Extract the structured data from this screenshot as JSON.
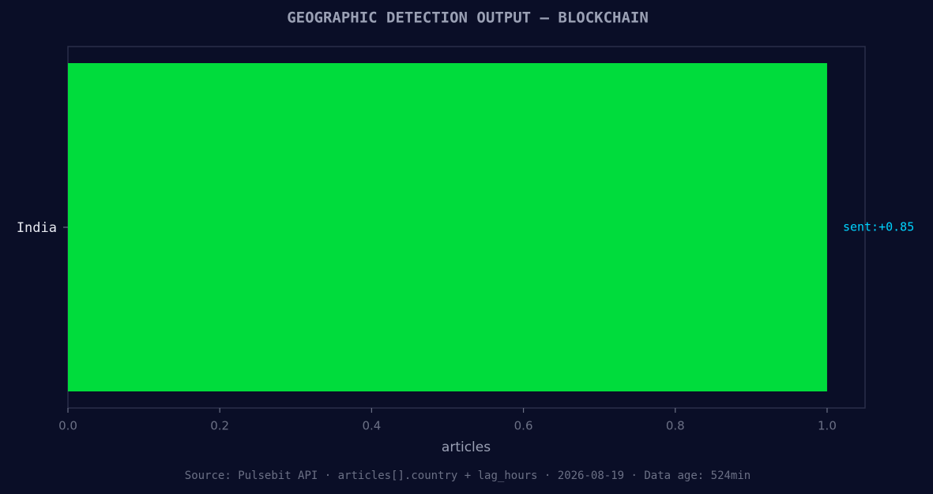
{
  "chart_data": {
    "type": "hbar",
    "title": "GEOGRAPHIC DETECTION OUTPUT — BLOCKCHAIN",
    "categories": [
      "India"
    ],
    "values": [
      1
    ],
    "bar_annotations": [
      "sent:+0.85"
    ],
    "color": "#00dc3c",
    "annotation_color": "#00d4ff",
    "xlabel": "articles",
    "xlim": [
      0,
      1.05
    ],
    "xticks": [
      {
        "value": 0,
        "label": "0.0"
      },
      0.2,
      0.4,
      0.6,
      0.8,
      {
        "value": 1,
        "label": "1.0"
      }
    ],
    "grid": false,
    "source": "Source: Pulsebit API · articles[].country + lag_hours · 2026-08-19 · Data age: 524min"
  }
}
